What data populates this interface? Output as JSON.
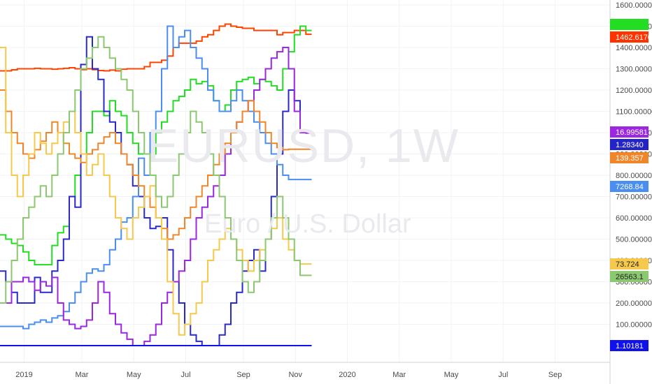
{
  "chart_data": {
    "type": "line",
    "title": "",
    "xlabel": "",
    "ylabel": "",
    "watermark": {
      "symbol": "EURUSD, 1W",
      "name": "Euro / U.S. Dollar"
    },
    "y_axis": {
      "ticks": [
        "1600.00000",
        "1500.00000",
        "1400.00000",
        "1300.00000",
        "1200.00000",
        "1100.00000",
        "1000.00000",
        "900.00000",
        "800.00000",
        "700.00000",
        "600.00000",
        "500.00000",
        "400.00000",
        "300.00000",
        "200.00000",
        "100.00000"
      ],
      "tick_values": [
        1600,
        1500,
        1400,
        1300,
        1200,
        1100,
        1000,
        900,
        800,
        700,
        600,
        500,
        400,
        300,
        200,
        100
      ],
      "ylim": [
        0,
        1600
      ]
    },
    "x_axis": {
      "ticks": [
        "2019",
        "Mar",
        "May",
        "Jul",
        "Sep",
        "Nov",
        "2020",
        "Mar",
        "May",
        "Jul",
        "Sep"
      ],
      "tick_index": [
        2,
        12,
        21,
        30,
        40,
        49,
        58,
        67,
        76,
        85,
        94
      ],
      "xlim": [
        0,
        107
      ]
    },
    "last_values": [
      {
        "label": "1462.61700",
        "value": 1462.617,
        "color": "#ff3300"
      },
      {
        "label": "16.99581",
        "value": 998,
        "color": "#9c27e0"
      },
      {
        "label": "1.28340",
        "value": 955,
        "color": "#2323c8"
      },
      {
        "label": "139.357",
        "value": 922,
        "color": "#f0862a"
      },
      {
        "label": "7268.84",
        "value": 780,
        "color": "#4a8ef0"
      },
      {
        "label": "73.724",
        "value": 383,
        "color": "#f6c84c"
      },
      {
        "label": "26563.1",
        "value": 330,
        "color": "#8cc870"
      },
      {
        "label": "1.10181",
        "value": 0,
        "color": "#1111ee"
      }
    ],
    "series": [
      {
        "color": "#ff4400",
        "values": [
          1290,
          1290,
          1295,
          1300,
          1300,
          1300,
          1302,
          1300,
          1300,
          1298,
          1300,
          1302,
          1305,
          1300,
          1296,
          1300,
          1296,
          1292,
          1290,
          1294,
          1290,
          1298,
          1300,
          1300,
          1300,
          1310,
          1330,
          1330,
          1340,
          1360,
          1400,
          1420,
          1420,
          1420,
          1430,
          1450,
          1460,
          1480,
          1500,
          1510,
          1500,
          1495,
          1490,
          1490,
          1480,
          1480,
          1480,
          1480,
          1460,
          1470,
          1470,
          1480,
          1480,
          1462
        ]
      },
      {
        "color": "#22dd22",
        "values": [
          520,
          500,
          480,
          470,
          440,
          400,
          380,
          380,
          380,
          470,
          530,
          560,
          700,
          800,
          900,
          1000,
          1100,
          1100,
          1080,
          1150,
          1100,
          1080,
          1000,
          950,
          900,
          900,
          900,
          1000,
          1050,
          1100,
          1150,
          1170,
          1200,
          1250,
          1230,
          1240,
          1220,
          1150,
          1100,
          1130,
          1200,
          1240,
          1250,
          1260,
          1230,
          1250,
          1240,
          1220,
          1200,
          1300,
          1380,
          1460,
          1500,
          1480
        ]
      },
      {
        "color": "#2a2acc",
        "values": [
          350,
          300,
          250,
          200,
          200,
          200,
          320,
          250,
          250,
          350,
          400,
          500,
          700,
          650,
          1320,
          1450,
          1300,
          1250,
          1100,
          1050,
          1000,
          900,
          850,
          750,
          700,
          600,
          550,
          560,
          600,
          450,
          300,
          200,
          100,
          50,
          20,
          0,
          0,
          0,
          50,
          100,
          200,
          250,
          350,
          400,
          450,
          350,
          500,
          700,
          900,
          1100,
          1200,
          1150,
          1000,
          1000
        ]
      },
      {
        "color": "#4a8ef0",
        "values": [
          90,
          90,
          90,
          90,
          80,
          100,
          110,
          120,
          110,
          130,
          140,
          160,
          200,
          250,
          300,
          340,
          360,
          350,
          380,
          450,
          500,
          580,
          600,
          700,
          880,
          800,
          1000,
          1100,
          1300,
          1500,
          1400,
          1450,
          1480,
          1400,
          1350,
          1300,
          1200,
          1150,
          1100,
          1100,
          1150,
          1200,
          1150,
          1100,
          1050,
          1000,
          950,
          900,
          850,
          800,
          780,
          780,
          780,
          780
        ]
      },
      {
        "color": "#9c27e0",
        "values": [
          200,
          200,
          300,
          300,
          320,
          300,
          260,
          300,
          280,
          320,
          200,
          120,
          100,
          80,
          90,
          120,
          200,
          300,
          250,
          150,
          100,
          60,
          30,
          0,
          0,
          20,
          50,
          100,
          200,
          250,
          300,
          350,
          400,
          500,
          600,
          650,
          700,
          750,
          800,
          900,
          1000,
          1050,
          1100,
          1150,
          1200,
          1250,
          1300,
          1350,
          1380,
          1400,
          1300,
          1100,
          1000,
          998
        ]
      },
      {
        "color": "#f0862a",
        "values": [
          1200,
          1100,
          1000,
          950,
          900,
          880,
          920,
          960,
          1000,
          1050,
          1000,
          950,
          900,
          880,
          860,
          900,
          920,
          950,
          980,
          1000,
          950,
          900,
          850,
          800,
          750,
          700,
          650,
          600,
          550,
          500,
          520,
          550,
          600,
          650,
          700,
          750,
          800,
          850,
          900,
          950,
          1000,
          1050,
          1100,
          1150,
          1100,
          1050,
          1000,
          950,
          930,
          920,
          922,
          922,
          922,
          922
        ]
      },
      {
        "color": "#f6c84c",
        "values": [
          1400,
          1000,
          800,
          700,
          800,
          900,
          1000,
          950,
          900,
          950,
          1000,
          1050,
          1100,
          1000,
          900,
          800,
          850,
          900,
          800,
          700,
          600,
          550,
          500,
          600,
          650,
          700,
          750,
          600,
          500,
          300,
          150,
          50,
          100,
          150,
          200,
          300,
          400,
          450,
          500,
          550,
          500,
          450,
          400,
          350,
          400,
          450,
          500,
          550,
          600,
          500,
          450,
          400,
          383,
          383
        ]
      },
      {
        "color": "#8cc870",
        "values": [
          200,
          300,
          400,
          500,
          600,
          650,
          700,
          750,
          700,
          800,
          900,
          1000,
          1100,
          1200,
          1300,
          1350,
          1400,
          1450,
          1400,
          1350,
          1300,
          1250,
          1200,
          1100,
          1000,
          900,
          800,
          700,
          650,
          700,
          800,
          900,
          1000,
          1100,
          1050,
          1000,
          900,
          800,
          700,
          600,
          500,
          400,
          300,
          250,
          300,
          400,
          500,
          600,
          700,
          600,
          500,
          400,
          330,
          330
        ]
      }
    ]
  }
}
